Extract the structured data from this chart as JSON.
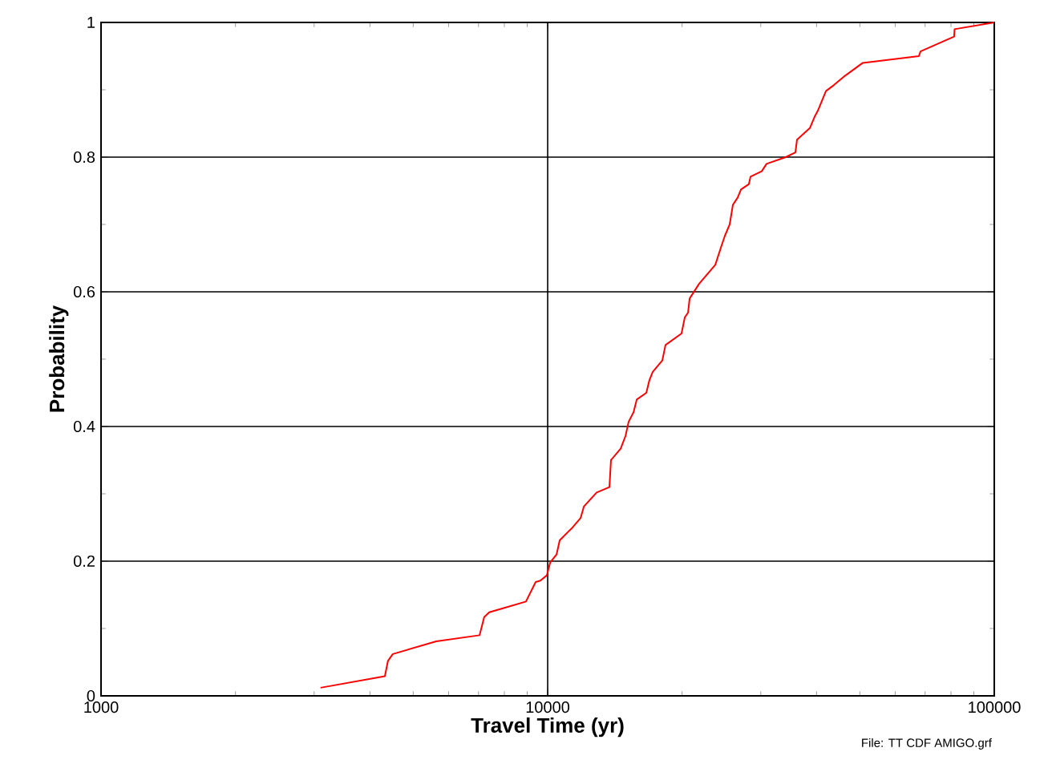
{
  "chart_data": {
    "type": "line",
    "xlabel": "Travel Time (yr)",
    "ylabel": "Probability",
    "annotations": [
      "File: TT CDF AMIGO.grf"
    ],
    "log": "x",
    "grid": true,
    "marker": "none",
    "line_style": "solid",
    "xlim": [
      1000,
      100000
    ],
    "xticks": [
      1000,
      10000,
      100000
    ],
    "ylim": [
      0,
      1
    ],
    "yticks": [
      0,
      0.2,
      0.4,
      0.6,
      0.8,
      1
    ],
    "series": [
      {
        "color": "#ff0000",
        "x": [
          3100,
          4320,
          4390,
          4500,
          5630,
          7040,
          7210,
          7400,
          8030,
          8940,
          9400,
          9630,
          9960,
          10130,
          10470,
          10640,
          11090,
          11370,
          11850,
          12050,
          12870,
          13750,
          13860,
          14570,
          14940,
          15180,
          15570,
          15830,
          16630,
          16900,
          17190,
          18060,
          18360,
          19940,
          20280,
          20620,
          20790,
          21840,
          23730,
          24520,
          24930,
          25560,
          25980,
          26640,
          27090,
          28220,
          28460,
          30150,
          30910,
          34140,
          35870,
          36170,
          38640,
          39610,
          40270,
          41980,
          43750,
          46370,
          50770,
          67800,
          68360,
          81300,
          81500,
          100000
        ],
        "values": [
          0.012,
          0.029,
          0.052,
          0.062,
          0.081,
          0.09,
          0.117,
          0.124,
          0.131,
          0.14,
          0.169,
          0.171,
          0.179,
          0.198,
          0.21,
          0.231,
          0.243,
          0.25,
          0.264,
          0.281,
          0.302,
          0.31,
          0.35,
          0.367,
          0.386,
          0.407,
          0.421,
          0.44,
          0.45,
          0.469,
          0.481,
          0.498,
          0.521,
          0.538,
          0.562,
          0.569,
          0.59,
          0.612,
          0.64,
          0.669,
          0.683,
          0.7,
          0.729,
          0.74,
          0.752,
          0.76,
          0.771,
          0.779,
          0.79,
          0.8,
          0.807,
          0.826,
          0.843,
          0.86,
          0.869,
          0.898,
          0.907,
          0.921,
          0.94,
          0.95,
          0.957,
          0.979,
          0.99,
          1.0
        ]
      }
    ]
  }
}
